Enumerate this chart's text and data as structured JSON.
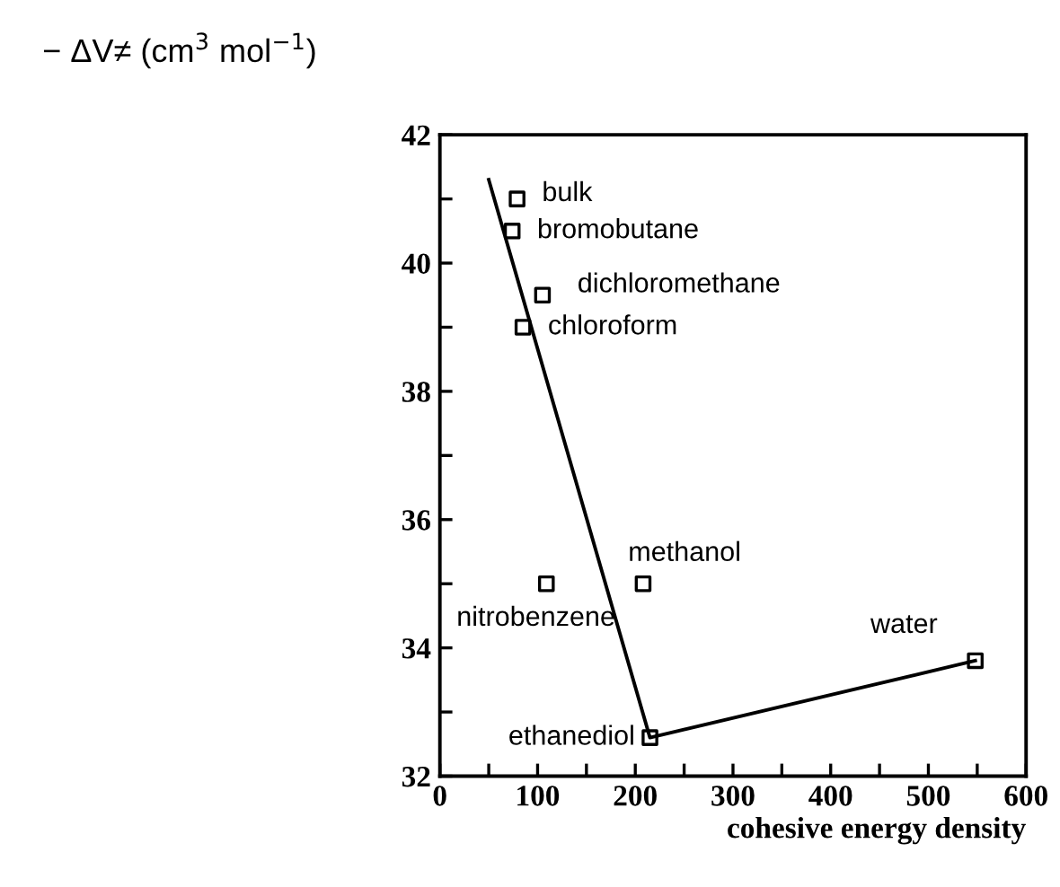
{
  "chart_data": {
    "type": "scatter",
    "xlabel": "cohesive energy density",
    "ylabel": "− ΔV≠ (cm$^{3}$ mol$^{−1}$)",
    "x": [
      79,
      74,
      105,
      85,
      109,
      208,
      215,
      548
    ],
    "series": [
      {
        "color": "#000000",
        "values": [
          41.0,
          40.5,
          39.5,
          39.0,
          35.0,
          35.0,
          32.6,
          33.8
        ],
        "marker": "square"
      },
      {
        "type": "line",
        "color": "#000000",
        "x": [
          50,
          215,
          548
        ],
        "values": [
          41.3,
          32.6,
          33.8
        ],
        "marker": "none"
      }
    ],
    "xlim": [
      0,
      600
    ],
    "ylim": [
      32,
      42
    ],
    "xticks": [
      0,
      {
        "value": 50,
        "label": null
      },
      100,
      {
        "value": 150,
        "label": null
      },
      200,
      {
        "value": 250,
        "label": null
      },
      300,
      {
        "value": 350,
        "label": null
      },
      400,
      {
        "value": 450,
        "label": null
      },
      500,
      {
        "value": 550,
        "label": null
      },
      600
    ],
    "yticks": [
      32,
      {
        "value": 33,
        "label": null
      },
      34,
      {
        "value": 35,
        "label": null
      },
      36,
      {
        "value": 37,
        "label": null
      },
      38,
      {
        "value": 39,
        "label": null
      },
      40,
      {
        "value": 41,
        "label": null
      },
      42
    ],
    "annotations": [
      {
        "text": "bulk",
        "x": 79,
        "y": 41.0
      },
      {
        "text": "bromobutane",
        "x": 74,
        "y": 40.5
      },
      {
        "text": "dichloromethane",
        "x": 105,
        "y": 39.5
      },
      {
        "text": "chloroform",
        "x": 85,
        "y": 39.0
      },
      {
        "text": "nitrobenzene",
        "x": 109,
        "y": 35.0
      },
      {
        "text": "methanol",
        "x": 208,
        "y": 35.0
      },
      {
        "text": "ethanediol",
        "x": 215,
        "y": 32.6
      },
      {
        "text": "water",
        "x": 548,
        "y": 33.8
      }
    ],
    "grid": false,
    "legend": false
  }
}
